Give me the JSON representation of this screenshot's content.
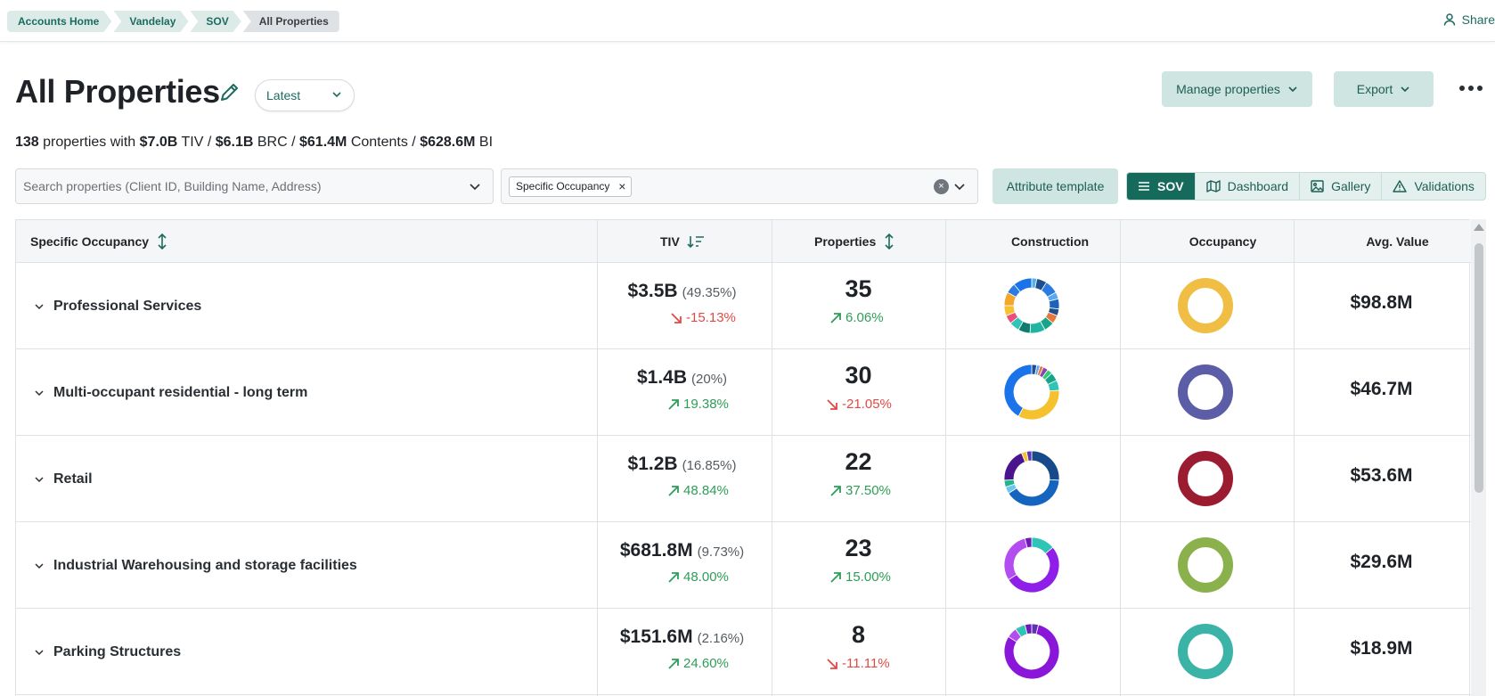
{
  "breadcrumb": [
    "Accounts Home",
    "Vandelay",
    "SOV",
    "All Properties"
  ],
  "share_label": "Share",
  "page_title": "All Properties",
  "version_select": "Latest",
  "toolbar": {
    "manage_label": "Manage properties",
    "export_label": "Export"
  },
  "summary": {
    "count": "138",
    "text1": " properties with ",
    "tiv": "$7.0B",
    "text2": " TIV / ",
    "brc": "$6.1B",
    "text3": " BRC / ",
    "contents": "$61.4M",
    "text4": " Contents / ",
    "bi": "$628.6M",
    "text5": " BI"
  },
  "search": {
    "placeholder": "Search properties (Client ID, Building Name, Address)",
    "value": ""
  },
  "filter": {
    "chip": "Specific Occupancy"
  },
  "attribute_template_label": "Attribute template",
  "view_tabs": [
    {
      "label": "SOV",
      "icon": "menu-icon",
      "active": true
    },
    {
      "label": "Dashboard",
      "icon": "map-icon",
      "active": false
    },
    {
      "label": "Gallery",
      "icon": "image-icon",
      "active": false
    },
    {
      "label": "Validations",
      "icon": "warning-icon",
      "active": false
    }
  ],
  "columns": [
    "Specific Occupancy",
    "TIV",
    "Properties",
    "Construction",
    "Occupancy",
    "Avg. Value"
  ],
  "rows": [
    {
      "name": "Professional Services",
      "tiv": "$3.5B",
      "tiv_pct": "(49.35%)",
      "tiv_delta": "-15.13%",
      "tiv_trend": "down",
      "props": "35",
      "props_delta": "6.06%",
      "props_trend": "up",
      "avg": "$98.8M",
      "occupancy_color": "#f0bd45",
      "construction": [
        {
          "v": 3,
          "c": "#4fb3e8"
        },
        {
          "v": 6,
          "c": "#1f4e8c"
        },
        {
          "v": 8,
          "c": "#2b7be3"
        },
        {
          "v": 4,
          "c": "#5ca8f0"
        },
        {
          "v": 6,
          "c": "#1e63b8"
        },
        {
          "v": 4,
          "c": "#1f4e8c"
        },
        {
          "v": 5,
          "c": "#e8783a"
        },
        {
          "v": 6,
          "c": "#17a589"
        },
        {
          "v": 9,
          "c": "#1fb5a2"
        },
        {
          "v": 7,
          "c": "#0f7d6e"
        },
        {
          "v": 6,
          "c": "#2ec4b6"
        },
        {
          "v": 5,
          "c": "#e94f7a"
        },
        {
          "v": 6,
          "c": "#f6c12f"
        },
        {
          "v": 8,
          "c": "#f4a62a"
        },
        {
          "v": 6,
          "c": "#2b7be3"
        },
        {
          "v": 11,
          "c": "#1a73e8"
        }
      ]
    },
    {
      "name": "Multi-occupant residential - long term",
      "tiv": "$1.4B",
      "tiv_pct": "(20%)",
      "tiv_delta": "19.38%",
      "tiv_trend": "up",
      "props": "30",
      "props_delta": "-21.05%",
      "props_trend": "down",
      "avg": "$46.7M",
      "occupancy_color": "#5b5ea6",
      "construction": [
        {
          "v": 3,
          "c": "#1f4e8c"
        },
        {
          "v": 2,
          "c": "#5ca8f0"
        },
        {
          "v": 2,
          "c": "#e8783a"
        },
        {
          "v": 3,
          "c": "#8e44ad"
        },
        {
          "v": 3,
          "c": "#2ecc71"
        },
        {
          "v": 5,
          "c": "#17a589"
        },
        {
          "v": 6,
          "c": "#2ec4b6"
        },
        {
          "v": 34,
          "c": "#f6c12f"
        },
        {
          "v": 42,
          "c": "#1a73e8"
        }
      ]
    },
    {
      "name": "Retail",
      "tiv": "$1.2B",
      "tiv_pct": "(16.85%)",
      "tiv_delta": "48.84%",
      "tiv_trend": "up",
      "props": "22",
      "props_delta": "37.50%",
      "props_trend": "up",
      "avg": "$53.6M",
      "occupancy_color": "#9b1c31",
      "construction": [
        {
          "v": 26,
          "c": "#164a8a"
        },
        {
          "v": 40,
          "c": "#1565c0"
        },
        {
          "v": 4,
          "c": "#6ac7f0"
        },
        {
          "v": 4,
          "c": "#1fb58a"
        },
        {
          "v": 20,
          "c": "#4a148c"
        },
        {
          "v": 3,
          "c": "#f6c12f"
        },
        {
          "v": 3,
          "c": "#5e35b1"
        }
      ]
    },
    {
      "name": "Industrial Warehousing and storage facilities",
      "tiv": "$681.8M",
      "tiv_pct": "(9.73%)",
      "tiv_delta": "48.00%",
      "tiv_trend": "up",
      "props": "23",
      "props_delta": "15.00%",
      "props_trend": "up",
      "avg": "$29.6M",
      "occupancy_color": "#8ab14b",
      "construction": [
        {
          "v": 14,
          "c": "#2ec4b6"
        },
        {
          "v": 52,
          "c": "#8f1fe8"
        },
        {
          "v": 30,
          "c": "#b34df0"
        },
        {
          "v": 4,
          "c": "#6a1bb8"
        }
      ]
    },
    {
      "name": "Parking Structures",
      "tiv": "$151.6M",
      "tiv_pct": "(2.16%)",
      "tiv_delta": "24.60%",
      "tiv_trend": "up",
      "props": "8",
      "props_delta": "-11.11%",
      "props_trend": "down",
      "avg": "$18.9M",
      "occupancy_color": "#3bb3a6",
      "construction": [
        {
          "v": 4,
          "c": "#5e35b1"
        },
        {
          "v": 80,
          "c": "#8a16d9"
        },
        {
          "v": 6,
          "c": "#b34df0"
        },
        {
          "v": 6,
          "c": "#2ec4b6"
        },
        {
          "v": 4,
          "c": "#6a1bb8"
        }
      ]
    }
  ],
  "colors": {
    "accent": "#156a5c",
    "up": "#2e9d57",
    "down": "#e04a44"
  }
}
